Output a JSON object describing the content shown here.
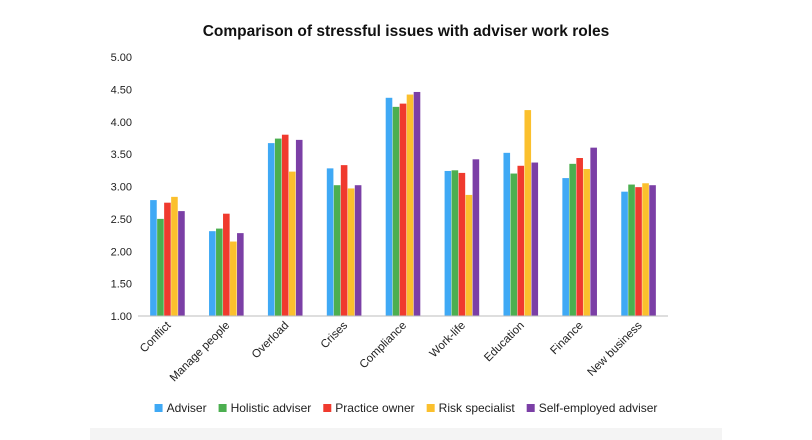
{
  "chart_data": {
    "type": "bar",
    "title": "Comparison of stressful issues with adviser work roles",
    "xlabel": "",
    "ylabel": "",
    "ylim": [
      1.0,
      5.0
    ],
    "yticks": [
      "1.00",
      "1.50",
      "2.00",
      "2.50",
      "3.00",
      "3.50",
      "4.00",
      "4.50",
      "5.00"
    ],
    "grid": false,
    "legend_position": "bottom",
    "categories": [
      "Conflict",
      "Manage people",
      "Overload",
      "Crises",
      "Compliance",
      "Work-life",
      "Education",
      "Finance",
      "New business"
    ],
    "series": [
      {
        "name": "Adviser",
        "color": "#3fa9f5",
        "values": [
          2.79,
          2.31,
          3.67,
          3.28,
          4.37,
          3.24,
          3.52,
          3.13,
          2.92
        ]
      },
      {
        "name": "Holistic adviser",
        "color": "#4caf50",
        "values": [
          2.5,
          2.35,
          3.74,
          3.02,
          4.23,
          3.25,
          3.2,
          3.35,
          3.03
        ]
      },
      {
        "name": "Practice owner",
        "color": "#f03a2e",
        "values": [
          2.75,
          2.58,
          3.8,
          3.33,
          4.28,
          3.21,
          3.32,
          3.44,
          2.99
        ]
      },
      {
        "name": "Risk specialist",
        "color": "#fbc02d",
        "values": [
          2.84,
          2.15,
          3.23,
          2.97,
          4.42,
          2.87,
          4.18,
          3.27,
          3.05
        ]
      },
      {
        "name": "Self-employed adviser",
        "color": "#7b3fa6",
        "values": [
          2.62,
          2.28,
          3.72,
          3.02,
          4.46,
          3.42,
          3.37,
          3.6,
          3.02
        ]
      }
    ]
  }
}
